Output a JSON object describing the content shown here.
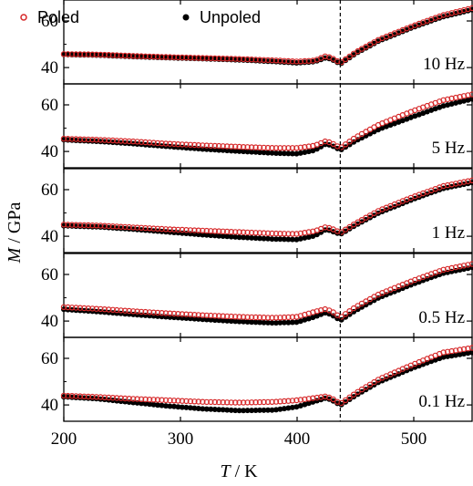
{
  "chart_data": {
    "type": "scatter",
    "xlabel_var": "T",
    "xlabel_unit": " / K",
    "ylabel_var": "M",
    "ylabel_unit": " / GPa",
    "xlim": [
      200,
      550
    ],
    "ylim": [
      33,
      69
    ],
    "xticks": [
      200,
      300,
      400,
      500
    ],
    "yticks": [
      40,
      60
    ],
    "vline_x": 437,
    "legend": {
      "placement": "top-left",
      "entries": [
        {
          "label": "Poled",
          "marker": "open-circle",
          "color": "#d62728"
        },
        {
          "label": "Unpoled",
          "marker": "filled-circle",
          "color": "#000000"
        }
      ]
    },
    "colors": {
      "poled": "#d62728",
      "unpoled": "#000000"
    },
    "panels": [
      {
        "label": "10 Hz",
        "series": [
          {
            "name": "Poled",
            "points": [
              [
                200,
                45.8
              ],
              [
                230,
                45.6
              ],
              [
                260,
                45.0
              ],
              [
                290,
                44.5
              ],
              [
                320,
                44.1
              ],
              [
                350,
                43.7
              ],
              [
                380,
                43.1
              ],
              [
                400,
                42.6
              ],
              [
                415,
                43.0
              ],
              [
                425,
                45.0
              ],
              [
                432,
                43.5
              ],
              [
                437,
                42.0
              ],
              [
                450,
                46.5
              ],
              [
                470,
                52.0
              ],
              [
                500,
                58.0
              ],
              [
                525,
                62.5
              ],
              [
                550,
                65.5
              ]
            ]
          },
          {
            "name": "Unpoled",
            "points": [
              [
                200,
                45.6
              ],
              [
                230,
                45.3
              ],
              [
                260,
                44.7
              ],
              [
                290,
                44.2
              ],
              [
                320,
                43.8
              ],
              [
                350,
                43.3
              ],
              [
                380,
                42.6
              ],
              [
                400,
                42.0
              ],
              [
                415,
                42.5
              ],
              [
                425,
                44.3
              ],
              [
                432,
                43.0
              ],
              [
                437,
                41.5
              ],
              [
                450,
                46.0
              ],
              [
                470,
                51.4
              ],
              [
                500,
                57.4
              ],
              [
                525,
                61.8
              ],
              [
                550,
                64.8
              ]
            ]
          }
        ]
      },
      {
        "label": "5 Hz",
        "series": [
          {
            "name": "Poled",
            "points": [
              [
                200,
                45.5
              ],
              [
                230,
                45.0
              ],
              [
                260,
                44.3
              ],
              [
                290,
                43.3
              ],
              [
                320,
                42.6
              ],
              [
                350,
                42.0
              ],
              [
                380,
                41.5
              ],
              [
                400,
                41.5
              ],
              [
                415,
                42.5
              ],
              [
                425,
                44.5
              ],
              [
                432,
                43.0
              ],
              [
                437,
                41.5
              ],
              [
                450,
                46.0
              ],
              [
                470,
                51.5
              ],
              [
                500,
                57.5
              ],
              [
                525,
                62.0
              ],
              [
                550,
                64.5
              ]
            ]
          },
          {
            "name": "Unpoled",
            "points": [
              [
                200,
                45.0
              ],
              [
                230,
                44.3
              ],
              [
                260,
                43.3
              ],
              [
                290,
                42.1
              ],
              [
                320,
                41.0
              ],
              [
                350,
                40.1
              ],
              [
                380,
                39.3
              ],
              [
                400,
                39.0
              ],
              [
                415,
                40.5
              ],
              [
                425,
                43.3
              ],
              [
                432,
                42.0
              ],
              [
                437,
                40.5
              ],
              [
                450,
                44.5
              ],
              [
                470,
                49.5
              ],
              [
                500,
                55.0
              ],
              [
                525,
                59.5
              ],
              [
                550,
                62.5
              ]
            ]
          }
        ]
      },
      {
        "label": "1 Hz",
        "series": [
          {
            "name": "Poled",
            "points": [
              [
                200,
                45.0
              ],
              [
                230,
                44.6
              ],
              [
                260,
                43.8
              ],
              [
                290,
                43.0
              ],
              [
                320,
                42.4
              ],
              [
                350,
                41.8
              ],
              [
                380,
                41.2
              ],
              [
                400,
                41.0
              ],
              [
                415,
                42.2
              ],
              [
                425,
                44.0
              ],
              [
                432,
                42.8
              ],
              [
                437,
                41.5
              ],
              [
                450,
                45.5
              ],
              [
                470,
                51.0
              ],
              [
                500,
                57.0
              ],
              [
                525,
                61.5
              ],
              [
                550,
                64.0
              ]
            ]
          },
          {
            "name": "Unpoled",
            "points": [
              [
                200,
                44.5
              ],
              [
                230,
                44.0
              ],
              [
                260,
                43.0
              ],
              [
                290,
                41.8
              ],
              [
                320,
                40.6
              ],
              [
                350,
                39.6
              ],
              [
                380,
                38.8
              ],
              [
                400,
                38.6
              ],
              [
                415,
                40.2
              ],
              [
                425,
                43.0
              ],
              [
                432,
                41.8
              ],
              [
                437,
                40.8
              ],
              [
                450,
                44.7
              ],
              [
                470,
                50.0
              ],
              [
                500,
                56.0
              ],
              [
                525,
                60.5
              ],
              [
                550,
                63.0
              ]
            ]
          }
        ]
      },
      {
        "label": "0.5 Hz",
        "series": [
          {
            "name": "Poled",
            "points": [
              [
                200,
                46.0
              ],
              [
                230,
                45.2
              ],
              [
                260,
                44.2
              ],
              [
                290,
                43.3
              ],
              [
                320,
                42.5
              ],
              [
                350,
                41.8
              ],
              [
                380,
                41.4
              ],
              [
                400,
                41.8
              ],
              [
                415,
                44.0
              ],
              [
                425,
                45.2
              ],
              [
                432,
                43.5
              ],
              [
                437,
                41.5
              ],
              [
                450,
                46.0
              ],
              [
                470,
                51.5
              ],
              [
                500,
                57.5
              ],
              [
                525,
                62.0
              ],
              [
                550,
                64.5
              ]
            ]
          },
          {
            "name": "Unpoled",
            "points": [
              [
                200,
                45.0
              ],
              [
                230,
                44.0
              ],
              [
                260,
                42.8
              ],
              [
                290,
                41.7
              ],
              [
                320,
                40.7
              ],
              [
                350,
                39.8
              ],
              [
                380,
                39.2
              ],
              [
                400,
                39.5
              ],
              [
                415,
                41.8
              ],
              [
                425,
                43.7
              ],
              [
                432,
                42.0
              ],
              [
                437,
                40.2
              ],
              [
                450,
                44.5
              ],
              [
                470,
                50.0
              ],
              [
                500,
                56.0
              ],
              [
                525,
                60.5
              ],
              [
                550,
                63.0
              ]
            ]
          }
        ]
      },
      {
        "label": "0.1 Hz",
        "series": [
          {
            "name": "Poled",
            "points": [
              [
                200,
                44.0
              ],
              [
                230,
                43.4
              ],
              [
                260,
                42.6
              ],
              [
                290,
                42.0
              ],
              [
                320,
                41.3
              ],
              [
                350,
                41.0
              ],
              [
                380,
                41.3
              ],
              [
                400,
                42.0
              ],
              [
                415,
                43.0
              ],
              [
                425,
                43.7
              ],
              [
                432,
                42.2
              ],
              [
                437,
                40.5
              ],
              [
                450,
                45.0
              ],
              [
                470,
                51.0
              ],
              [
                500,
                57.5
              ],
              [
                525,
                62.5
              ],
              [
                550,
                64.5
              ]
            ]
          },
          {
            "name": "Unpoled",
            "points": [
              [
                200,
                43.5
              ],
              [
                230,
                42.6
              ],
              [
                260,
                41.0
              ],
              [
                290,
                39.5
              ],
              [
                320,
                38.3
              ],
              [
                350,
                37.6
              ],
              [
                380,
                37.8
              ],
              [
                400,
                39.2
              ],
              [
                415,
                41.5
              ],
              [
                425,
                43.0
              ],
              [
                432,
                41.5
              ],
              [
                437,
                39.8
              ],
              [
                450,
                44.0
              ],
              [
                470,
                49.8
              ],
              [
                500,
                56.0
              ],
              [
                525,
                60.5
              ],
              [
                550,
                62.5
              ]
            ]
          }
        ]
      }
    ]
  }
}
